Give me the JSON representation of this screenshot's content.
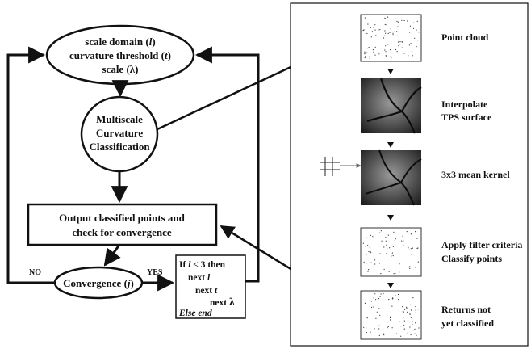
{
  "flowchart": {
    "params": {
      "line1_text": "scale domain (",
      "line1_var": "l",
      "line2_text": "curvature threshold (",
      "line2_var": "t",
      "line3_text": "scale (",
      "line3_var": "λ",
      "close": ")"
    },
    "classification": {
      "line1": "Multiscale",
      "line2": "Curvature",
      "line3": "Classification"
    },
    "output": {
      "line1": "Output classified points and",
      "line2": "check for convergence"
    },
    "convergence": {
      "text": "Convergence (",
      "var": "j",
      "close": ")"
    },
    "no_label": "NO",
    "yes_label": "YES",
    "loop": {
      "if_text": "If ",
      "if_var": "l",
      "if_rest": " < 3 then",
      "next": "next ",
      "var_l": "l",
      "var_t": "t",
      "var_lambda": "λ",
      "else_end": "Else end"
    }
  },
  "panel": {
    "steps": [
      {
        "label_lines": [
          "Point cloud"
        ]
      },
      {
        "label_lines": [
          "Interpolate",
          "TPS surface"
        ]
      },
      {
        "label_lines": [
          "3x3 mean kernel"
        ]
      },
      {
        "label_lines": [
          "Apply filter criteria",
          "Classify points"
        ]
      },
      {
        "label_lines": [
          "Returns not",
          "yet classified"
        ]
      }
    ]
  }
}
